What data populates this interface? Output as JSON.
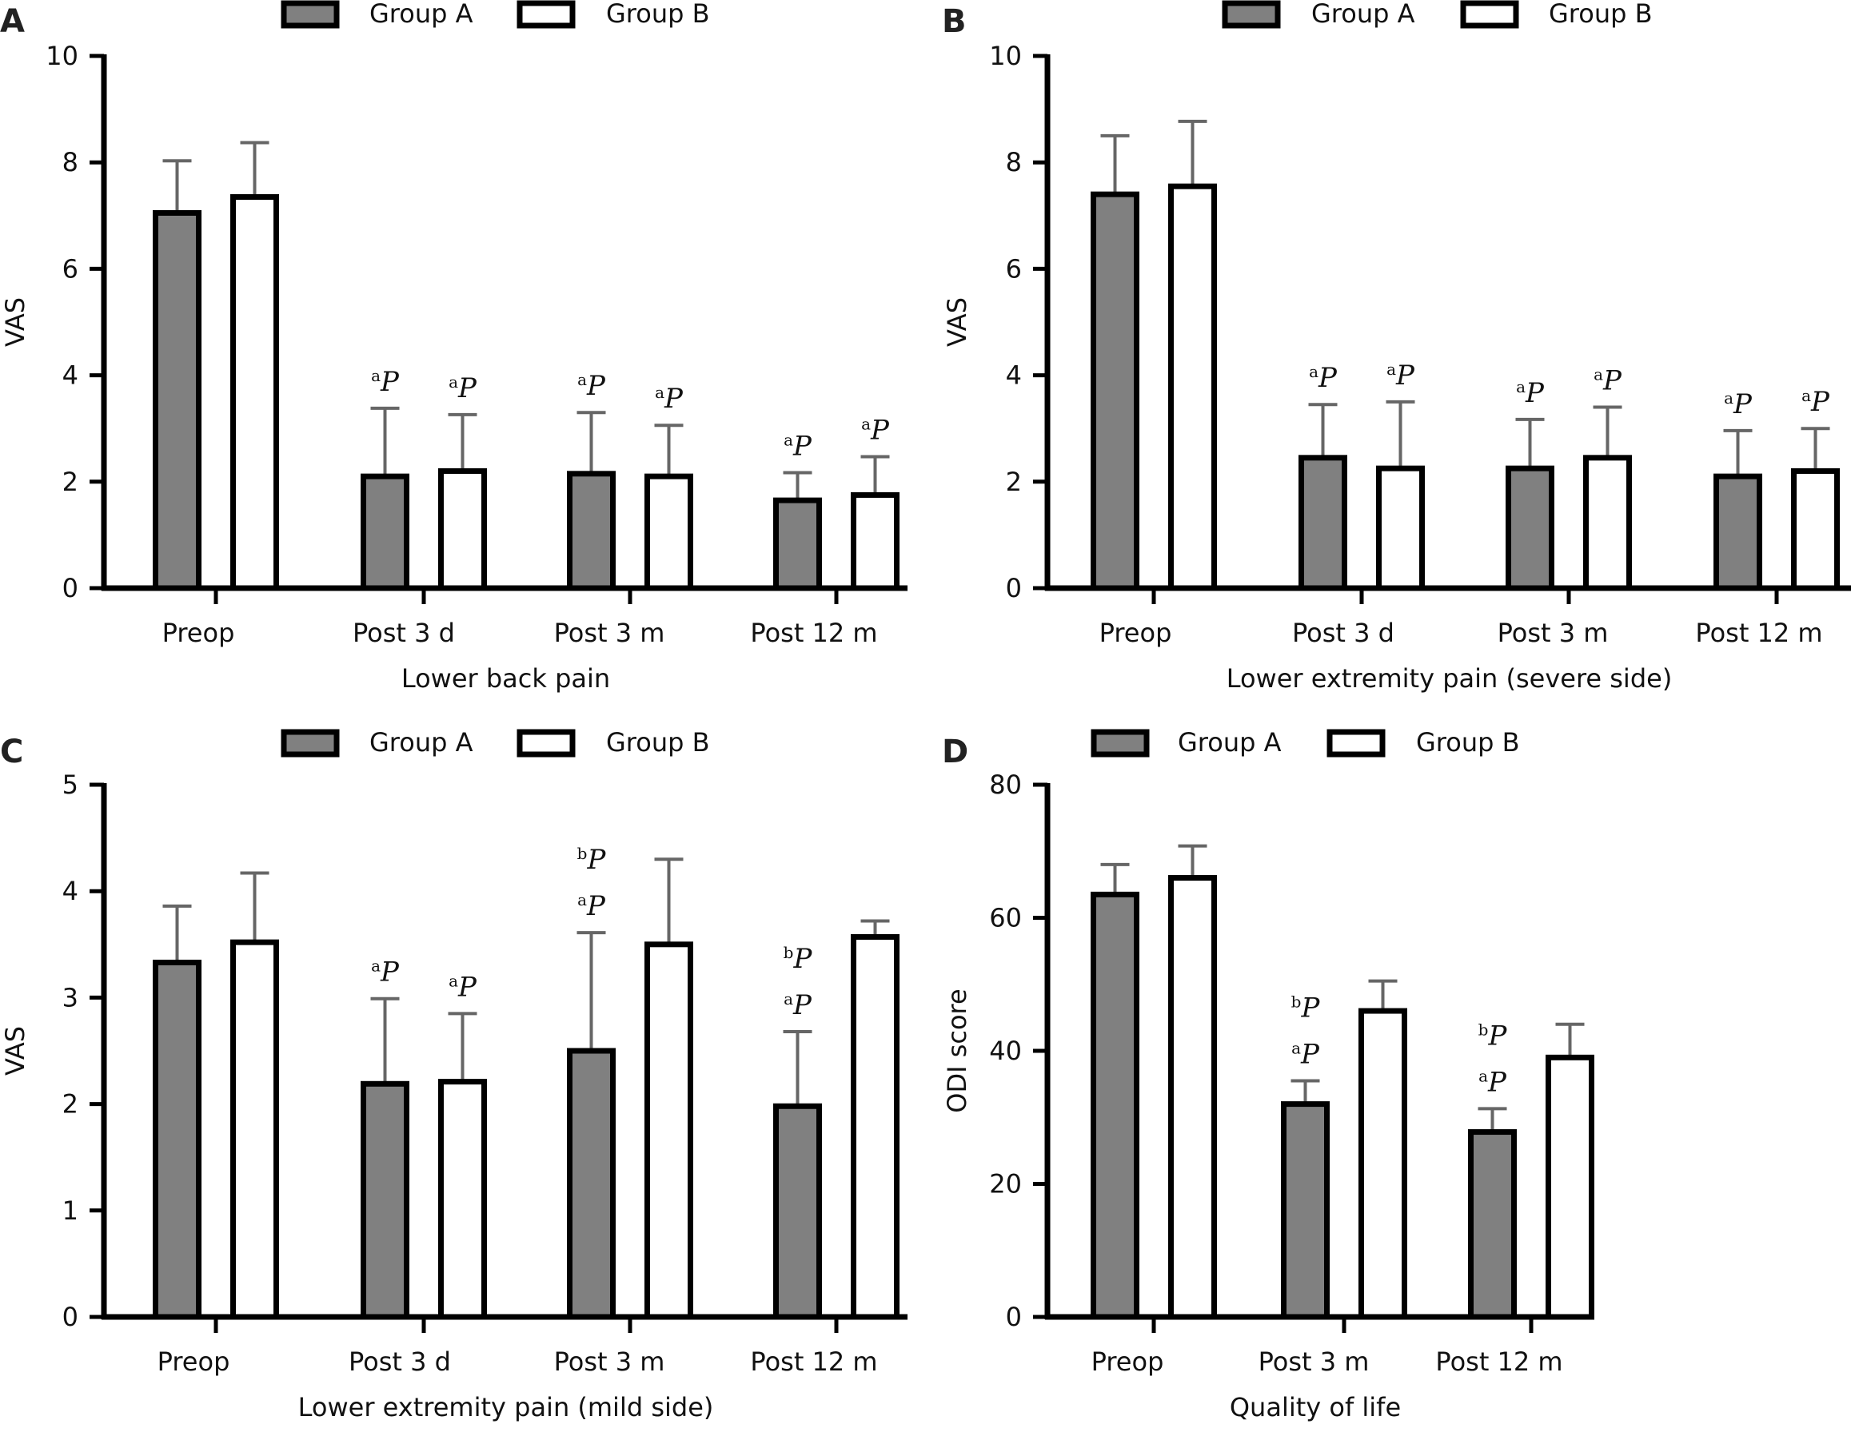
{
  "legend": {
    "group_a": "Group A",
    "group_b": "Group B"
  },
  "colors": {
    "group_a_fill": "#808080",
    "group_b_fill": "#ffffff",
    "stroke": "#000000",
    "error_bar": "#666666"
  },
  "chart_data": [
    {
      "panel": "A",
      "type": "bar",
      "categories": [
        "Preop",
        "Post 3 d",
        "Post 3 m",
        "Post 12 m"
      ],
      "xlabel": "Lower back pain",
      "ylabel": "VAS",
      "ylim": [
        0,
        10
      ],
      "yticks": [
        0,
        2,
        4,
        6,
        8,
        10
      ],
      "legend": "top",
      "series": [
        {
          "name": "Group A",
          "values": [
            7.05,
            2.1,
            2.15,
            1.65
          ],
          "errors": [
            0.98,
            1.28,
            1.15,
            0.52
          ]
        },
        {
          "name": "Group B",
          "values": [
            7.35,
            2.2,
            2.1,
            1.75
          ],
          "errors": [
            1.02,
            1.06,
            0.96,
            0.72
          ]
        }
      ],
      "annotations": [
        {
          "category": 1,
          "series": 0,
          "labels": [
            "aP"
          ]
        },
        {
          "category": 1,
          "series": 1,
          "labels": [
            "aP"
          ]
        },
        {
          "category": 2,
          "series": 0,
          "labels": [
            "aP"
          ]
        },
        {
          "category": 2,
          "series": 1,
          "labels": [
            "aP"
          ]
        },
        {
          "category": 3,
          "series": 0,
          "labels": [
            "aP"
          ]
        },
        {
          "category": 3,
          "series": 1,
          "labels": [
            "aP"
          ]
        }
      ]
    },
    {
      "panel": "B",
      "type": "bar",
      "categories": [
        "Preop",
        "Post 3 d",
        "Post 3 m",
        "Post 12 m"
      ],
      "xlabel": "Lower extremity pain (severe side)",
      "ylabel": "VAS",
      "ylim": [
        0,
        10
      ],
      "yticks": [
        0,
        2,
        4,
        6,
        8,
        10
      ],
      "legend": "top",
      "series": [
        {
          "name": "Group A",
          "values": [
            7.4,
            2.45,
            2.25,
            2.1
          ],
          "errors": [
            1.1,
            1.0,
            0.92,
            0.86
          ]
        },
        {
          "name": "Group B",
          "values": [
            7.55,
            2.25,
            2.45,
            2.2
          ],
          "errors": [
            1.22,
            1.25,
            0.95,
            0.8
          ]
        }
      ],
      "annotations": [
        {
          "category": 1,
          "series": 0,
          "labels": [
            "aP"
          ]
        },
        {
          "category": 1,
          "series": 1,
          "labels": [
            "aP"
          ]
        },
        {
          "category": 2,
          "series": 0,
          "labels": [
            "aP"
          ]
        },
        {
          "category": 2,
          "series": 1,
          "labels": [
            "aP"
          ]
        },
        {
          "category": 3,
          "series": 0,
          "labels": [
            "aP"
          ]
        },
        {
          "category": 3,
          "series": 1,
          "labels": [
            "aP"
          ]
        }
      ]
    },
    {
      "panel": "C",
      "type": "bar",
      "categories": [
        "Preop",
        "Post 3 d",
        "Post 3 m",
        "Post 12 m"
      ],
      "xlabel": "Lower extremity pain (mild side)",
      "ylabel": "VAS",
      "ylim": [
        0,
        5
      ],
      "yticks": [
        0,
        1,
        2,
        3,
        4,
        5
      ],
      "legend": "top",
      "series": [
        {
          "name": "Group A",
          "values": [
            3.33,
            2.19,
            2.5,
            1.98
          ],
          "errors": [
            0.53,
            0.8,
            1.11,
            0.7
          ]
        },
        {
          "name": "Group B",
          "values": [
            3.52,
            2.21,
            3.5,
            3.57
          ],
          "errors": [
            0.65,
            0.64,
            0.8,
            0.15
          ]
        }
      ],
      "annotations": [
        {
          "category": 1,
          "series": 0,
          "labels": [
            "aP"
          ]
        },
        {
          "category": 1,
          "series": 1,
          "labels": [
            "aP"
          ]
        },
        {
          "category": 2,
          "series": 0,
          "labels": [
            "aP",
            "bP"
          ]
        },
        {
          "category": 3,
          "series": 0,
          "labels": [
            "aP",
            "bP"
          ]
        }
      ]
    },
    {
      "panel": "D",
      "type": "bar",
      "categories": [
        "Preop",
        "Post 3 m",
        "Post 12 m"
      ],
      "xlabel": "Quality of life",
      "ylabel": "ODI score",
      "ylim": [
        0,
        80
      ],
      "yticks": [
        0,
        20,
        40,
        60,
        80
      ],
      "legend": "top",
      "series": [
        {
          "name": "Group A",
          "values": [
            63.5,
            32.0,
            27.8
          ],
          "errors": [
            4.5,
            3.5,
            3.5
          ]
        },
        {
          "name": "Group B",
          "values": [
            66.0,
            46.0,
            39.0
          ],
          "errors": [
            4.8,
            4.5,
            5.0
          ]
        }
      ],
      "annotations": [
        {
          "category": 1,
          "series": 0,
          "labels": [
            "aP",
            "bP"
          ]
        },
        {
          "category": 2,
          "series": 0,
          "labels": [
            "aP",
            "bP"
          ]
        }
      ]
    }
  ]
}
